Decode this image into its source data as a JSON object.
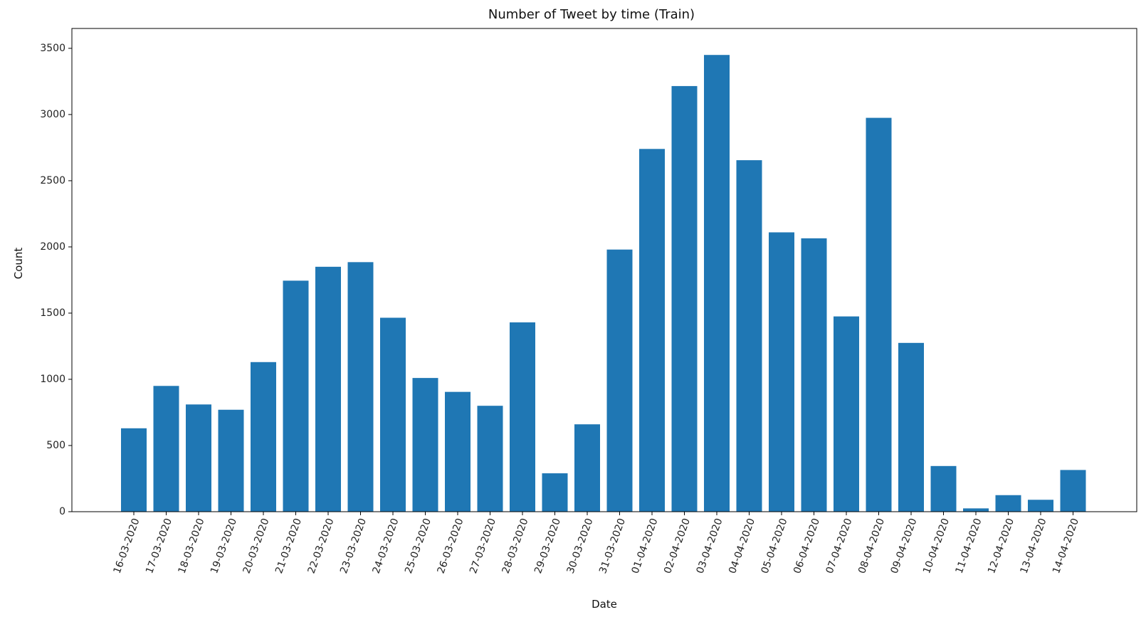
{
  "chart_data": {
    "type": "bar",
    "title": "Number of Tweet by time (Train)",
    "xlabel": "Date",
    "ylabel": "Count",
    "ylim": [
      0,
      3650
    ],
    "yticks": [
      0,
      500,
      1000,
      1500,
      2000,
      2500,
      3000,
      3500
    ],
    "grid": false,
    "color": "#1f77b4",
    "categories": [
      "16-03-2020",
      "17-03-2020",
      "18-03-2020",
      "19-03-2020",
      "20-03-2020",
      "21-03-2020",
      "22-03-2020",
      "23-03-2020",
      "24-03-2020",
      "25-03-2020",
      "26-03-2020",
      "27-03-2020",
      "28-03-2020",
      "29-03-2020",
      "30-03-2020",
      "31-03-2020",
      "01-04-2020",
      "02-04-2020",
      "03-04-2020",
      "04-04-2020",
      "05-04-2020",
      "06-04-2020",
      "07-04-2020",
      "08-04-2020",
      "09-04-2020",
      "10-04-2020",
      "11-04-2020",
      "12-04-2020",
      "13-04-2020",
      "14-04-2020"
    ],
    "values": [
      630,
      950,
      810,
      770,
      1130,
      1745,
      1850,
      1885,
      1465,
      1010,
      905,
      800,
      1430,
      290,
      660,
      1980,
      2740,
      3215,
      3450,
      2655,
      2110,
      2065,
      1475,
      2975,
      1275,
      345,
      25,
      125,
      90,
      315
    ]
  }
}
